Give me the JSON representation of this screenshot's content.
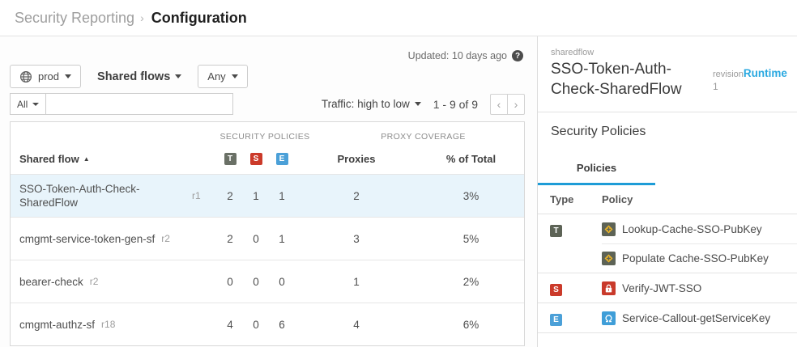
{
  "breadcrumb": {
    "parent": "Security Reporting",
    "separator": "›",
    "current": "Configuration"
  },
  "toolbar": {
    "environment": "prod",
    "scope": "Shared flows",
    "filter_any": "Any",
    "search_scope": "All",
    "search_value": "",
    "updated": "Updated: 10 days ago",
    "traffic_sort": "Traffic: high to low",
    "pagination": "1 - 9 of 9"
  },
  "table": {
    "group_security": "SECURITY POLICIES",
    "group_proxy": "PROXY COVERAGE",
    "col_shared_flow": "Shared flow",
    "col_proxies": "Proxies",
    "col_pct": "% of Total",
    "badges": [
      {
        "label": "T",
        "color": "#6a7066"
      },
      {
        "label": "S",
        "color": "#cb3a2a"
      },
      {
        "label": "E",
        "color": "#4ba0d8"
      }
    ],
    "rows": [
      {
        "name": "SSO-Token-Auth-Check-SharedFlow",
        "revision": "r1",
        "t": "2",
        "s": "1",
        "e": "1",
        "proxies": "2",
        "pct": "3%",
        "selected": true
      },
      {
        "name": "cmgmt-service-token-gen-sf",
        "revision": "r2",
        "t": "2",
        "s": "0",
        "e": "1",
        "proxies": "3",
        "pct": "5%",
        "selected": false
      },
      {
        "name": "bearer-check",
        "revision": "r2",
        "t": "0",
        "s": "0",
        "e": "0",
        "proxies": "1",
        "pct": "2%",
        "selected": false
      },
      {
        "name": "cmgmt-authz-sf",
        "revision": "r18",
        "t": "4",
        "s": "0",
        "e": "6",
        "proxies": "4",
        "pct": "6%",
        "selected": false
      }
    ]
  },
  "panel": {
    "entity_type": "sharedflow",
    "title": "SSO-Token-Auth-Check-SharedFlow",
    "revision_label": "revision",
    "revision_value": "1",
    "runtime_link": "Runtime",
    "section_title": "Security Policies",
    "tab": "Policies",
    "col_type": "Type",
    "col_policy": "Policy",
    "policy_groups": [
      {
        "type": "T",
        "type_color": "#5d6356",
        "policies": [
          {
            "icon": "cache-icon",
            "name": "Lookup-Cache-SSO-PubKey"
          },
          {
            "icon": "cache-icon",
            "name": "Populate Cache-SSO-PubKey"
          }
        ]
      },
      {
        "type": "S",
        "type_color": "#cb3a2a",
        "policies": [
          {
            "icon": "lock-icon",
            "name": "Verify-JWT-SSO"
          }
        ]
      },
      {
        "type": "E",
        "type_color": "#4ba0d8",
        "policies": [
          {
            "icon": "callout-icon",
            "name": "Service-Callout-getServiceKey"
          }
        ]
      }
    ]
  },
  "colors": {
    "accent_blue": "#1e9cd7",
    "link_blue": "#29a8e0",
    "selected_row_bg": "#e8f4fb",
    "cache_icon_bg": "#5d6356",
    "cache_icon_diamond": "#f2b824",
    "lock_icon_bg": "#c93a2b",
    "callout_icon_bg": "#3f9ed8"
  }
}
